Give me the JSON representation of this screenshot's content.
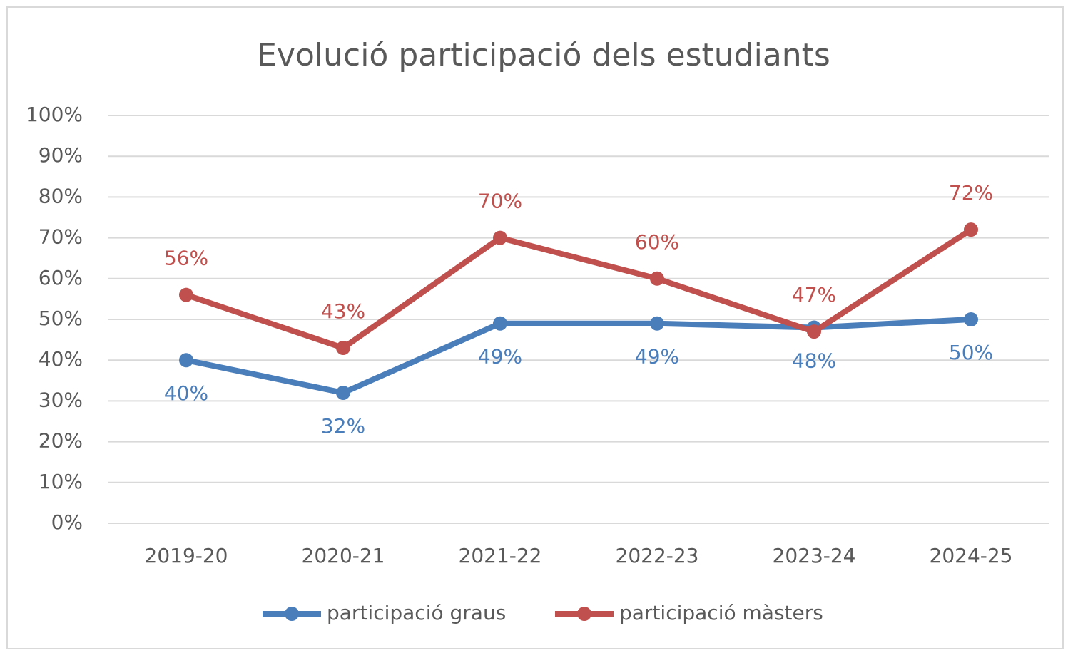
{
  "chart_data": {
    "type": "line",
    "title": "Evolució participació dels estudiants",
    "categories": [
      "2019-20",
      "2020-21",
      "2021-22",
      "2022-23",
      "2023-24",
      "2024-25"
    ],
    "series": [
      {
        "name": "participació graus",
        "color": "#4a7ebb",
        "values": [
          40,
          32,
          49,
          49,
          48,
          50
        ],
        "value_labels": [
          "40%",
          "32%",
          "49%",
          "49%",
          "48%",
          "50%"
        ]
      },
      {
        "name": "participació màsters",
        "color": "#c0504d",
        "values": [
          56,
          43,
          70,
          60,
          47,
          72
        ],
        "value_labels": [
          "56%",
          "43%",
          "70%",
          "60%",
          "47%",
          "72%"
        ]
      }
    ],
    "ylim": [
      0,
      100
    ],
    "yticks": [
      {
        "value": 0,
        "label": "0%"
      },
      {
        "value": 10,
        "label": "10%"
      },
      {
        "value": 20,
        "label": "20%"
      },
      {
        "value": 30,
        "label": "30%"
      },
      {
        "value": 40,
        "label": "40%"
      },
      {
        "value": 50,
        "label": "50%"
      },
      {
        "value": 60,
        "label": "60%"
      },
      {
        "value": 70,
        "label": "70%"
      },
      {
        "value": 80,
        "label": "80%"
      },
      {
        "value": 90,
        "label": "90%"
      },
      {
        "value": 100,
        "label": "100%"
      }
    ],
    "grid": true,
    "legend": "bottom"
  }
}
